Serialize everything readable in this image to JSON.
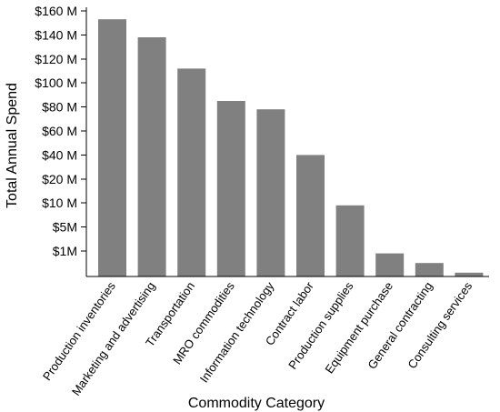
{
  "chart_data": {
    "type": "bar",
    "xlabel": "Commodity Category",
    "ylabel": "Total Annual Spend",
    "y_ticks": [
      "$160 M",
      "$140 M",
      "$120 M",
      "$100 M",
      "$80 M",
      "$60 M",
      "$40 M",
      "$20 M",
      "$10 M",
      "$5M",
      "$1M"
    ],
    "y_scale_note": "non-linear: tick labels sit at equal spacing",
    "categories": [
      "Production inventories",
      "Marketing and advertising",
      "Transportation",
      "MRO commodities",
      "Information technology",
      "Contract labor",
      "Production supplies",
      "Equipment purchase",
      "General contracting",
      "Consulting services"
    ],
    "values_tick_index": [
      9.65,
      8.9,
      7.6,
      6.25,
      5.9,
      4.0,
      1.9,
      -0.1,
      -0.5,
      -0.9
    ],
    "bar_color": "#808080",
    "grid": false,
    "legend": "none"
  }
}
